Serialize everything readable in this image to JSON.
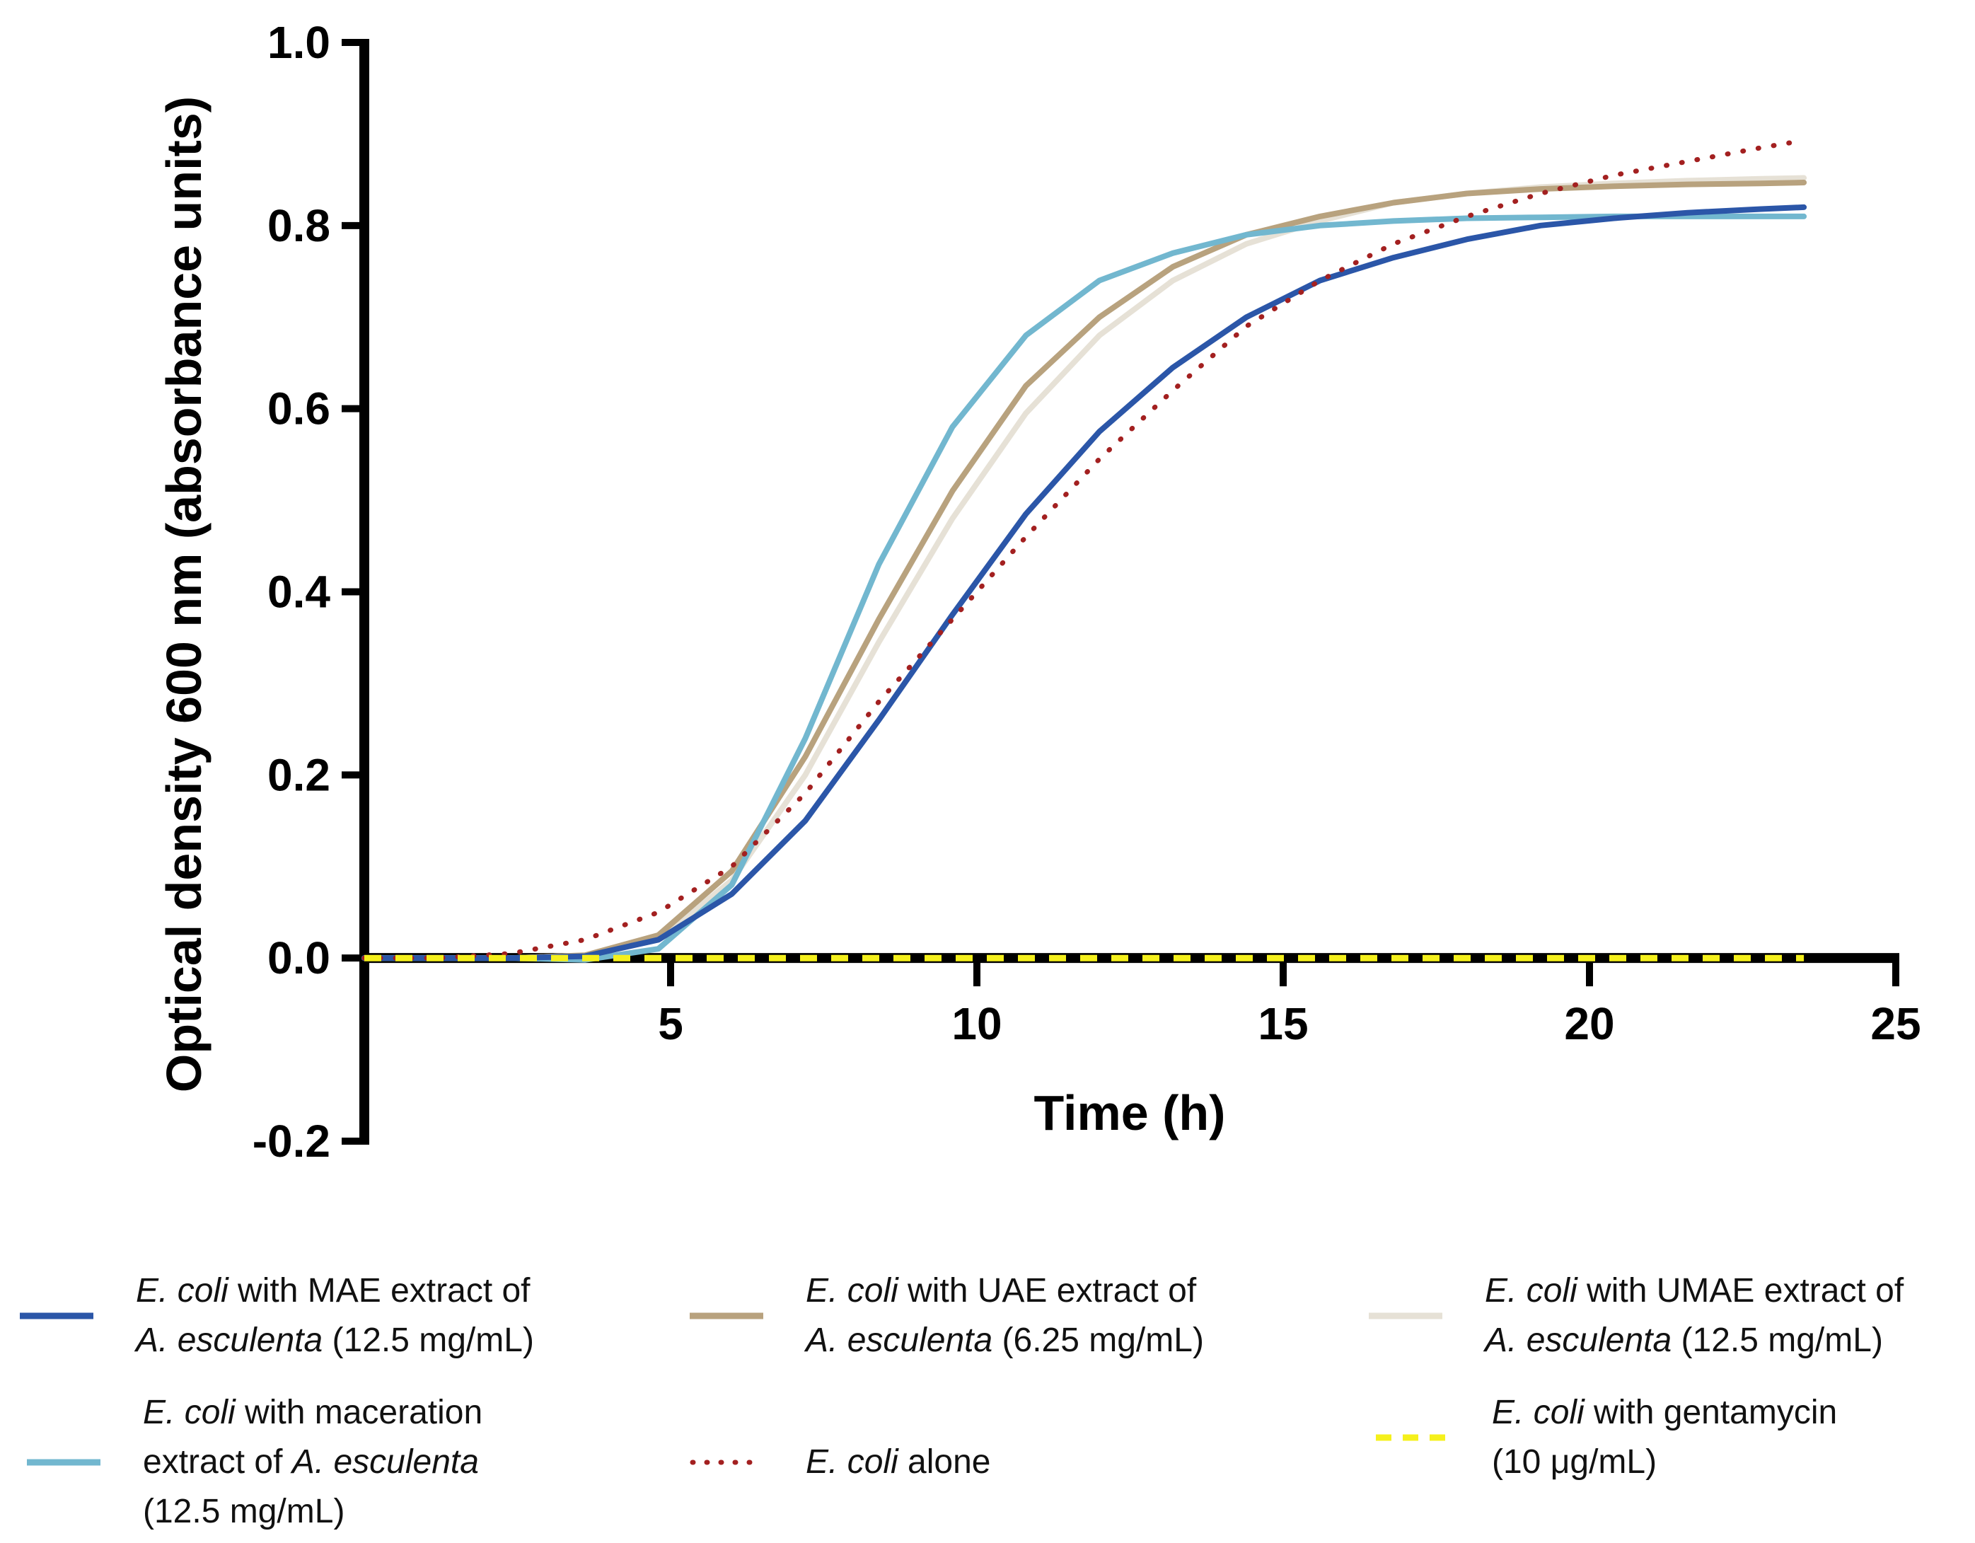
{
  "chart_data": {
    "type": "line",
    "xlabel": "Time (h)",
    "ylabel": "Optical density 600 nm (absorbance units)",
    "xlim": [
      0,
      25
    ],
    "ylim": [
      -0.2,
      1.0
    ],
    "x_ticks": [
      "5",
      "10",
      "15",
      "20",
      "25"
    ],
    "y_ticks": [
      "1.0",
      "0.8",
      "0.6",
      "0.4",
      "0.2",
      "0.0",
      "-0.2"
    ],
    "grid": false,
    "legend_position": "bottom",
    "series": [
      {
        "name": "E. coli with MAE extract of A. esculenta (12.5 mg/mL)",
        "color": "#2b56a8",
        "style": "solid",
        "x": [
          0,
          1.2,
          2.4,
          3.6,
          4.8,
          6.0,
          7.2,
          8.4,
          9.6,
          10.8,
          12.0,
          13.2,
          14.4,
          15.6,
          16.8,
          18.0,
          19.2,
          20.4,
          21.6,
          22.8,
          23.5
        ],
        "y": [
          0.0,
          0.0,
          0.0,
          0.002,
          0.02,
          0.07,
          0.15,
          0.26,
          0.375,
          0.485,
          0.575,
          0.645,
          0.7,
          0.74,
          0.765,
          0.785,
          0.8,
          0.808,
          0.814,
          0.818,
          0.82
        ]
      },
      {
        "name": "E. coli with UAE extract of A. esculenta (6.25 mg/mL)",
        "color": "#b8a27e",
        "style": "solid",
        "x": [
          0,
          1.2,
          2.4,
          3.6,
          4.8,
          6.0,
          7.2,
          8.4,
          9.6,
          10.8,
          12.0,
          13.2,
          14.4,
          15.6,
          16.8,
          18.0,
          19.2,
          20.4,
          21.6,
          22.8,
          23.5
        ],
        "y": [
          0.0,
          0.0,
          0.0,
          0.003,
          0.025,
          0.095,
          0.22,
          0.37,
          0.51,
          0.625,
          0.7,
          0.755,
          0.79,
          0.81,
          0.825,
          0.835,
          0.84,
          0.843,
          0.845,
          0.846,
          0.847
        ]
      },
      {
        "name": "E. coli with UMAE extract of A. esculenta (12.5 mg/mL)",
        "color": "#e6e1d6",
        "style": "solid",
        "x": [
          0,
          1.2,
          2.4,
          3.6,
          4.8,
          6.0,
          7.2,
          8.4,
          9.6,
          10.8,
          12.0,
          13.2,
          14.4,
          15.6,
          16.8,
          18.0,
          19.2,
          20.4,
          21.6,
          22.8,
          23.5
        ],
        "y": [
          0.0,
          0.0,
          0.0,
          0.003,
          0.02,
          0.085,
          0.2,
          0.345,
          0.48,
          0.595,
          0.68,
          0.74,
          0.78,
          0.805,
          0.825,
          0.835,
          0.842,
          0.846,
          0.849,
          0.851,
          0.852
        ]
      },
      {
        "name": "E. coli with maceration extract of A. esculenta (12.5 mg/mL)",
        "color": "#72b7cf",
        "style": "solid",
        "x": [
          0,
          1.2,
          2.4,
          3.6,
          4.8,
          6.0,
          7.2,
          8.4,
          9.6,
          10.8,
          12.0,
          13.2,
          14.4,
          15.6,
          16.8,
          18.0,
          19.2,
          20.4,
          21.6,
          22.8,
          23.5
        ],
        "y": [
          0.0,
          0.0,
          0.0,
          -0.002,
          0.01,
          0.08,
          0.24,
          0.43,
          0.58,
          0.68,
          0.74,
          0.77,
          0.79,
          0.8,
          0.805,
          0.808,
          0.809,
          0.81,
          0.81,
          0.81,
          0.81
        ]
      },
      {
        "name": "E. coli alone",
        "color": "#a32020",
        "style": "dotted",
        "x": [
          0,
          1.2,
          2.4,
          3.6,
          4.8,
          6.0,
          7.2,
          8.4,
          9.6,
          10.8,
          12.0,
          13.2,
          14.4,
          15.6,
          16.8,
          18.0,
          19.2,
          20.4,
          21.6,
          22.8,
          23.5
        ],
        "y": [
          0.0,
          0.0,
          0.005,
          0.02,
          0.05,
          0.1,
          0.18,
          0.28,
          0.37,
          0.46,
          0.545,
          0.62,
          0.69,
          0.74,
          0.78,
          0.81,
          0.835,
          0.855,
          0.87,
          0.885,
          0.893
        ]
      },
      {
        "name": "E. coli with gentamycin (10 μg/mL)",
        "color": "#f5f01c",
        "style": "dashed",
        "x": [
          0,
          23.5
        ],
        "y": [
          0.0,
          0.0
        ]
      }
    ]
  },
  "legend": [
    {
      "italic": "E. coli",
      "text1": " with MAE extract of",
      "italic2": "A. esculenta",
      "text2": " (12.5 mg/mL)"
    },
    {
      "italic": "E. coli",
      "text1": " with UAE extract of",
      "italic2": "A. esculenta",
      "text2": " (6.25 mg/mL)"
    },
    {
      "italic": "E. coli",
      "text1": " with UMAE extract of",
      "italic2": "A. esculenta",
      "text2": " (12.5 mg/mL)"
    },
    {
      "italic": "E. coli",
      "text1": " with maceration",
      "plain_mid": "extract of ",
      "italic2": "A. esculenta",
      "text2": "(12.5 mg/mL)"
    },
    {
      "italic": "E. coli",
      "text1": " alone"
    },
    {
      "italic": "E. coli",
      "text1": " with gentamycin",
      "text2": "(10 μg/mL)"
    }
  ]
}
